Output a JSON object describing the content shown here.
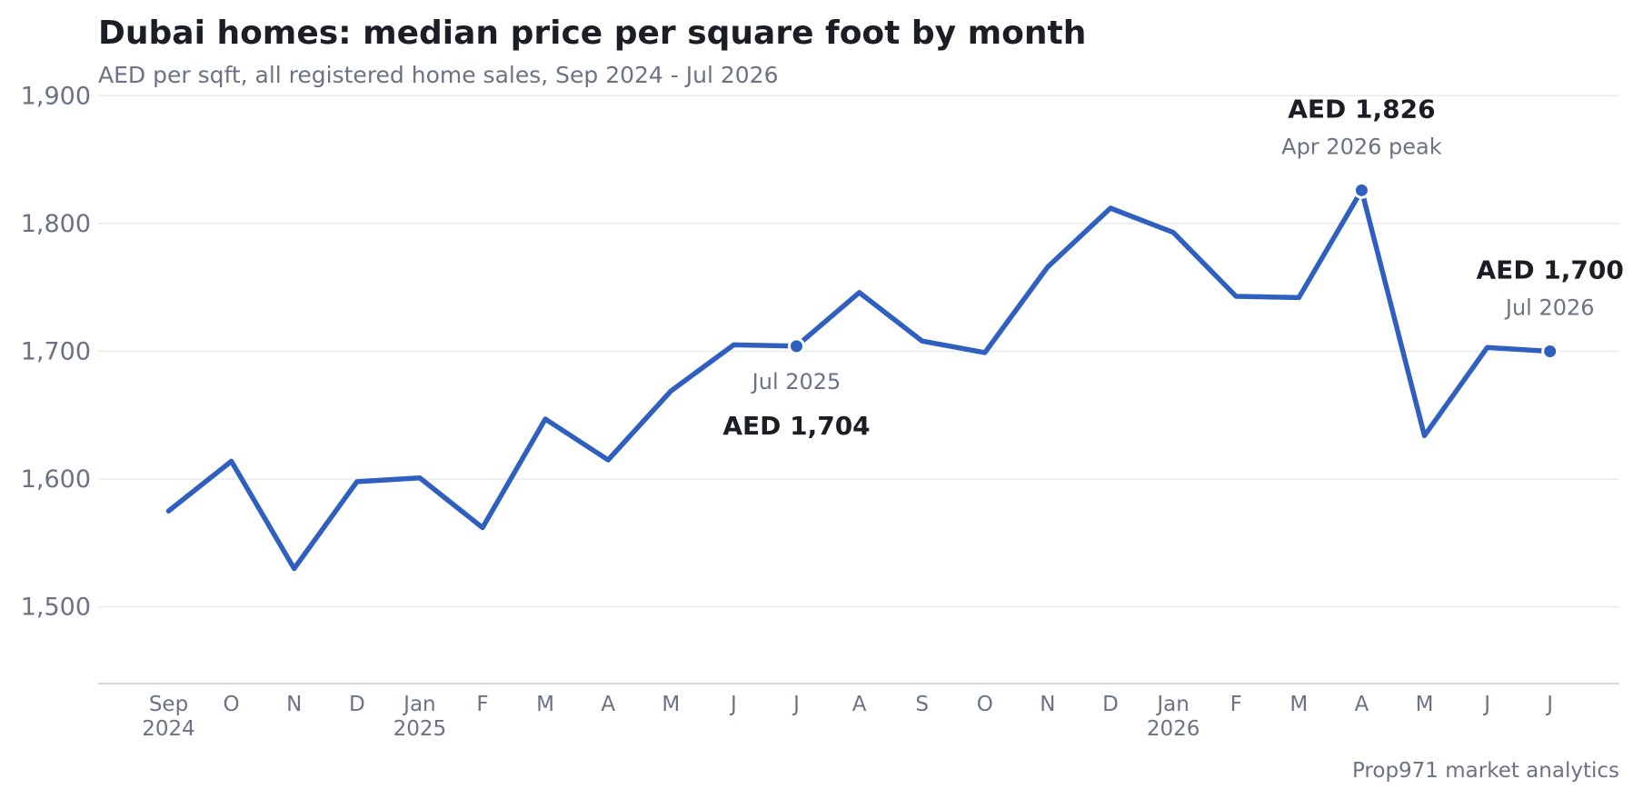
{
  "chart_data": {
    "type": "line",
    "title": "Dubai homes: median price per square foot by month",
    "subtitle": "AED per sqft, all registered home sales, Sep 2024 - Jul 2026",
    "source": "Prop971 market analytics",
    "xlabel": "",
    "ylabel": "",
    "ylim": [
      1440,
      1950
    ],
    "yticks": [
      1500,
      1600,
      1700,
      1800,
      1900
    ],
    "ytick_labels": [
      "1,500",
      "1,600",
      "1,700",
      "1,800",
      "1,900"
    ],
    "grid": true,
    "categories": [
      "2024-09",
      "2024-10",
      "2024-11",
      "2024-12",
      "2025-01",
      "2025-02",
      "2025-03",
      "2025-04",
      "2025-05",
      "2025-06",
      "2025-07",
      "2025-08",
      "2025-09",
      "2025-10",
      "2025-11",
      "2025-12",
      "2026-01",
      "2026-02",
      "2026-03",
      "2026-04",
      "2026-05",
      "2026-06",
      "2026-07"
    ],
    "tick_labels": [
      "Sep",
      "O",
      "N",
      "D",
      "Jan",
      "F",
      "M",
      "A",
      "M",
      "J",
      "J",
      "A",
      "S",
      "O",
      "N",
      "D",
      "Jan",
      "F",
      "M",
      "A",
      "M",
      "J",
      "J"
    ],
    "year_labels": [
      "2024",
      "",
      "",
      "",
      "2025",
      "",
      "",
      "",
      "",
      "",
      "",
      "",
      "",
      "",
      "",
      "",
      "2026",
      "",
      "",
      "",
      "",
      "",
      ""
    ],
    "series": [
      {
        "values": [
          1575,
          1614,
          1530,
          1598,
          1601,
          1562,
          1647,
          1615,
          1669,
          1705,
          1704,
          1746,
          1708,
          1699,
          1766,
          1812,
          1793,
          1743,
          1742,
          1826,
          1634,
          1703,
          1700
        ],
        "color": "#2f5fbf"
      }
    ],
    "annotations": [
      {
        "index": 10,
        "value_label": "AED 1,704",
        "label": "Jul 2025",
        "position": "below"
      },
      {
        "index": 19,
        "value_label": "AED 1,826",
        "label": "Apr 2026 peak",
        "position": "above"
      },
      {
        "index": 22,
        "value_label": "AED 1,700",
        "label": "Jul 2026",
        "position": "above"
      }
    ]
  }
}
